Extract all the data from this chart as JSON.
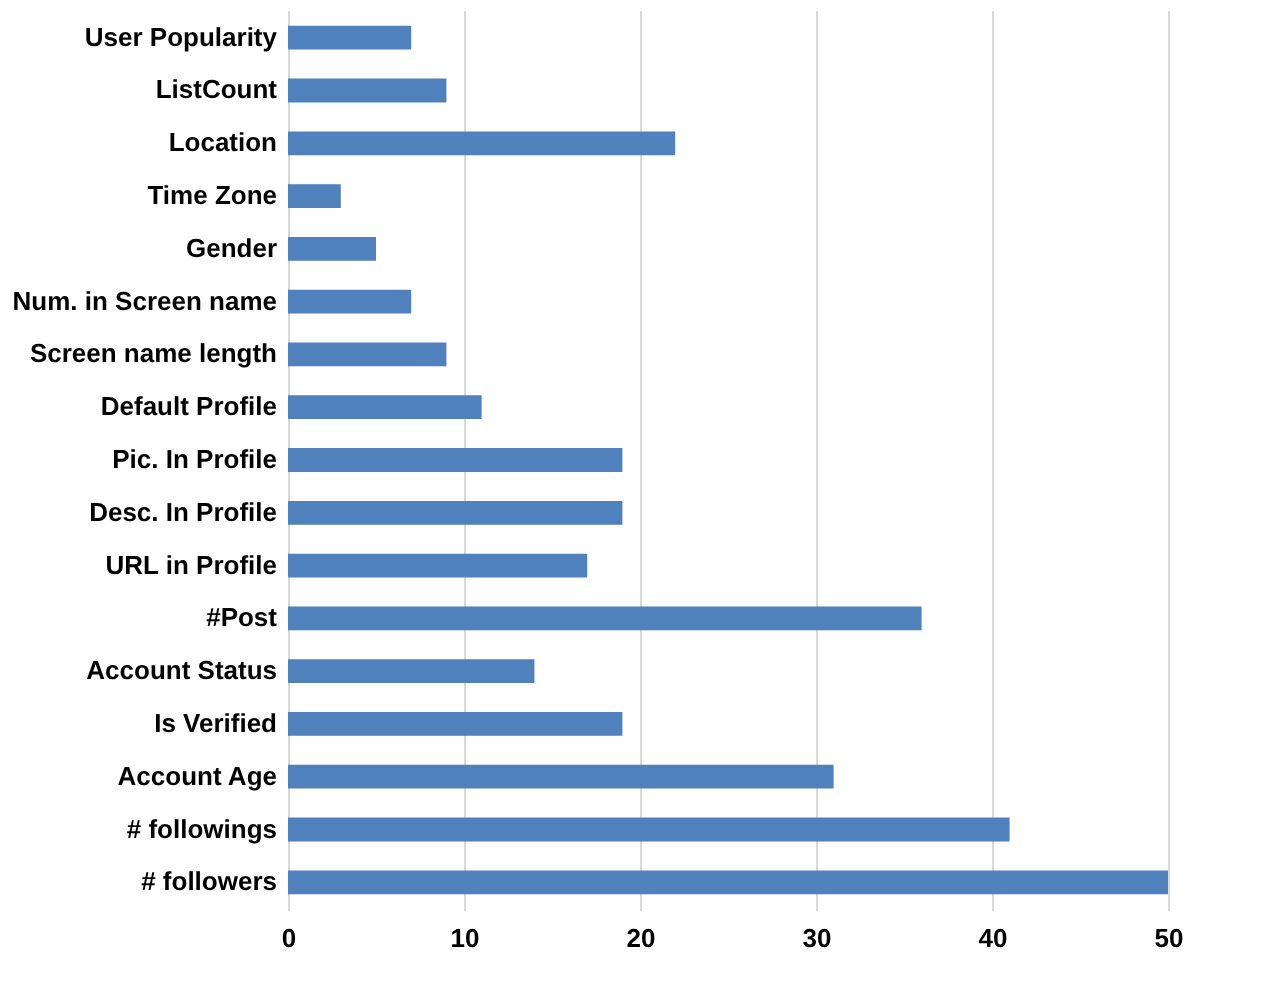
{
  "chart_data": {
    "type": "bar",
    "orientation": "horizontal",
    "categories": [
      "User Popularity",
      "ListCount",
      "Location",
      "Time Zone",
      "Gender",
      "Num. in Screen name",
      "Screen name length",
      "Default Profile",
      "Pic. In Profile",
      "Desc. In Profile",
      "URL in Profile",
      "#Post",
      "Account Status",
      "Is Verified",
      "Account Age",
      "# followings",
      "# followers"
    ],
    "values": [
      7,
      9,
      22,
      3,
      5,
      7,
      9,
      11,
      19,
      19,
      17,
      36,
      14,
      19,
      31,
      41,
      50
    ],
    "color": "#4f81bd",
    "xlim": [
      0,
      50
    ],
    "xticks": [
      0,
      10,
      20,
      30,
      40,
      50
    ],
    "grid": "x"
  }
}
